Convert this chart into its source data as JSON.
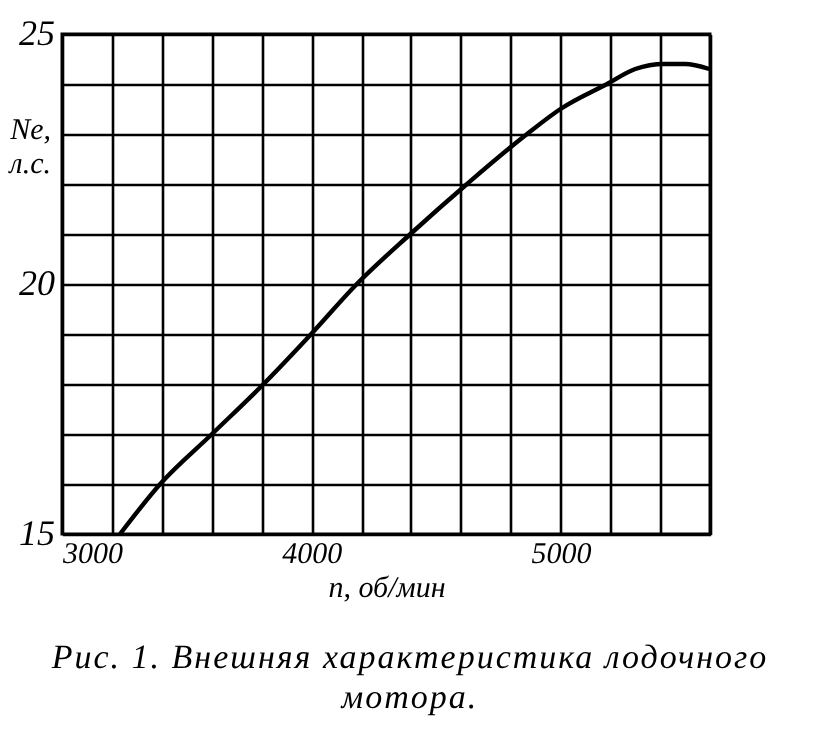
{
  "chart_data": {
    "type": "line",
    "xlabel": "n, об/мин",
    "ylabel": "Ne, л.с.",
    "annotations": [
      "Рис. 1. Внешняя характеристика лодочного мотора."
    ],
    "x": [
      3233,
      3394,
      3602,
      3809,
      4000,
      4183,
      4398,
      4625,
      4866,
      5000,
      5187,
      5300,
      5415,
      5500,
      5597
    ],
    "series": [
      {
        "color": "#000000",
        "values": [
          15,
          16,
          17,
          18,
          19,
          20,
          21,
          22,
          23,
          23.5,
          24,
          24.3,
          24.4,
          24.4,
          24.3
        ]
      }
    ],
    "xlim": [
      3000,
      5600
    ],
    "xticks": [
      3000,
      {
        "value": 3200,
        "label": null
      },
      {
        "value": 3400,
        "label": null
      },
      {
        "value": 3600,
        "label": null
      },
      {
        "value": 3800,
        "label": null
      },
      4000,
      {
        "value": 4200,
        "label": null
      },
      {
        "value": 4400,
        "label": null
      },
      {
        "value": 4600,
        "label": null
      },
      {
        "value": 4800,
        "label": null
      },
      5000,
      {
        "value": 5200,
        "label": null
      },
      {
        "value": 5400,
        "label": null
      },
      {
        "value": 5600,
        "label": null
      }
    ],
    "ylim": [
      15,
      25
    ],
    "yticks": [
      15,
      {
        "value": 16,
        "label": null
      },
      {
        "value": 17,
        "label": null
      },
      {
        "value": 18,
        "label": null
      },
      {
        "value": 19,
        "label": null
      },
      20,
      {
        "value": 21,
        "label": null
      },
      {
        "value": 22,
        "label": null
      },
      {
        "value": 23,
        "label": null
      },
      {
        "value": 24,
        "label": null
      },
      25
    ],
    "grid": true,
    "marker": "none",
    "line_style": "solid"
  }
}
